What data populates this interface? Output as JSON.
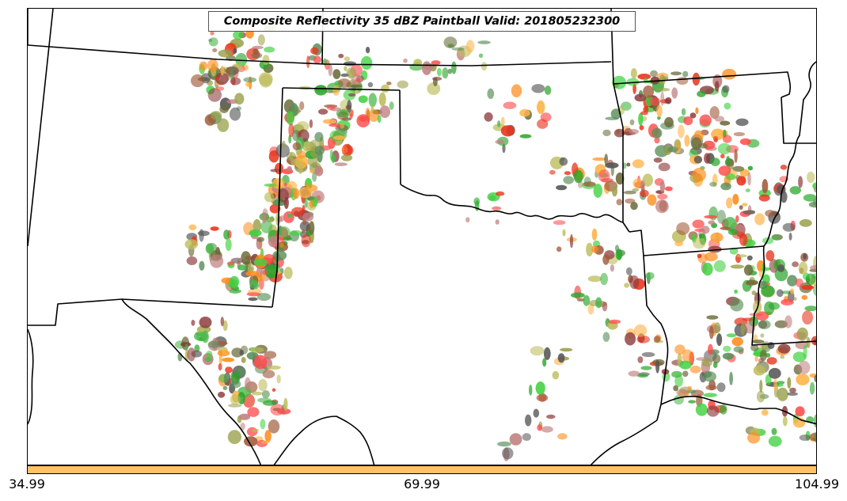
{
  "title": "Composite Reflectivity 35 dBZ Paintball Valid: 201805232300",
  "map": {
    "boundary_color": "#000000",
    "paint_colors": [
      "#ff4a4a",
      "#e8341c",
      "#ff8c1a",
      "#ffb347",
      "#c08080",
      "#8b3a3a",
      "#4cb84c",
      "#28a428",
      "#3fd13f",
      "#5a8f5a",
      "#9aa04a",
      "#bcbc5a",
      "#555555",
      "#6b6b3a",
      "#a05a3a"
    ]
  },
  "colorbar": {
    "color": "#ffc266",
    "tick_labels": [
      "34.99",
      "69.99",
      "104.99"
    ],
    "min": 34.99,
    "mid": 69.99,
    "max": 104.99
  }
}
